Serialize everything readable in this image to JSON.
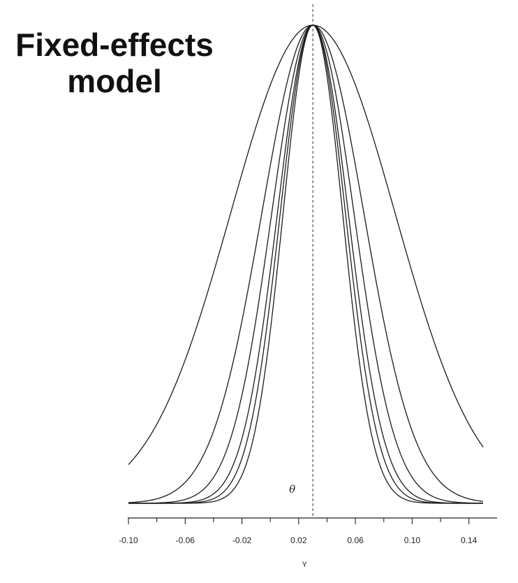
{
  "title": {
    "line1": "Fixed-effects",
    "line2": "model"
  },
  "chart_data": {
    "type": "line",
    "title": "Fixed-effects model",
    "xlabel": "Y",
    "ylabel": "",
    "xlim": [
      -0.1,
      0.15
    ],
    "xticks": [
      -0.1,
      -0.08,
      -0.06,
      -0.04,
      -0.02,
      0.0,
      0.02,
      0.04,
      0.06,
      0.08,
      0.1,
      0.12,
      0.14
    ],
    "xtick_labels": [
      "-0.10",
      "",
      "-0.06",
      "",
      "-0.02",
      "",
      "0.02",
      "",
      "0.06",
      "",
      "0.10",
      "",
      "0.14"
    ],
    "reference_line": {
      "x": 0.03,
      "label": "θ",
      "style": "dashed"
    },
    "curve_form": "normal density scaled to common peak height",
    "series": [
      {
        "mean": 0.03,
        "sd": 0.058
      },
      {
        "mean": 0.03,
        "sd": 0.036
      },
      {
        "mean": 0.03,
        "sd": 0.029
      },
      {
        "mean": 0.03,
        "sd": 0.025
      },
      {
        "mean": 0.03,
        "sd": 0.023
      },
      {
        "mean": 0.03,
        "sd": 0.021
      }
    ],
    "grid": false,
    "legend": "none",
    "line_color": "#1a1a1a"
  }
}
